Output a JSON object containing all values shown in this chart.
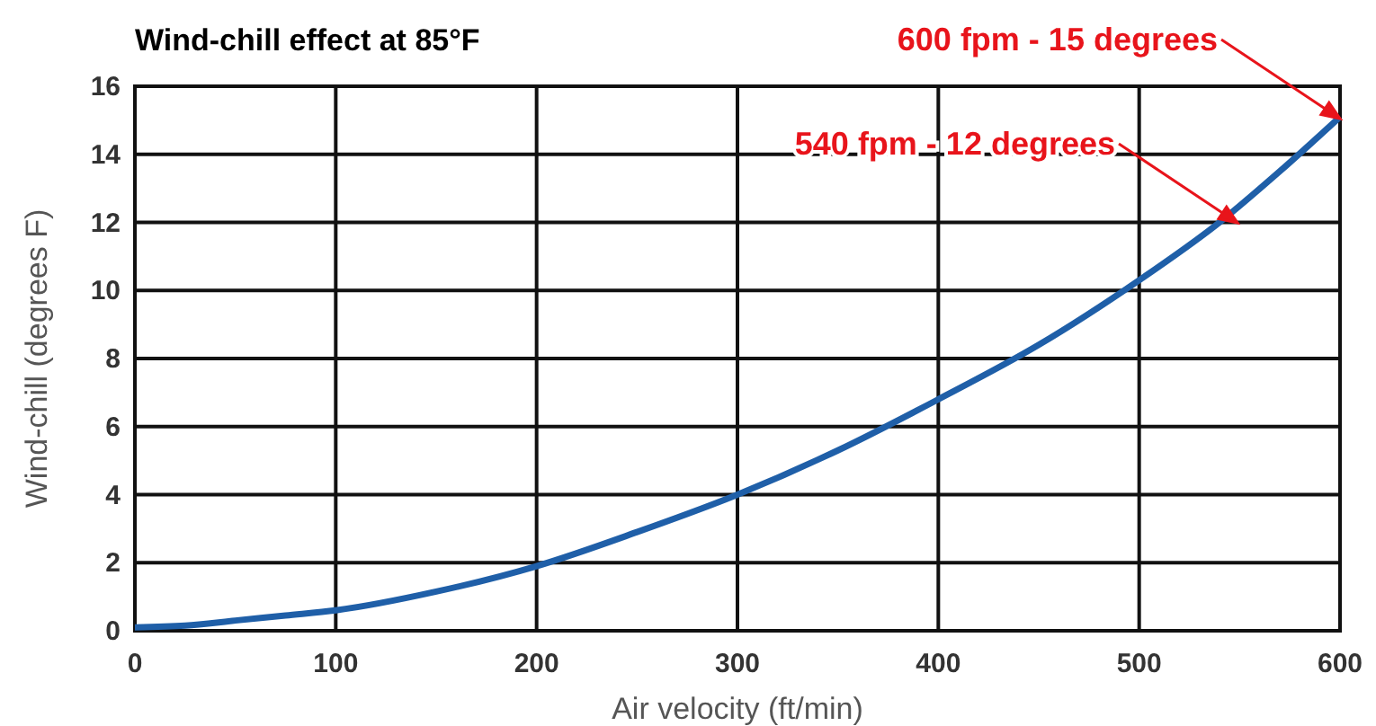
{
  "chart_data": {
    "type": "line",
    "title": "Wind-chill effect at 85°F",
    "xlabel": "Air velocity (ft/min)",
    "ylabel": "Wind-chill (degrees F)",
    "x": [
      0,
      25,
      50,
      75,
      100,
      150,
      200,
      250,
      300,
      350,
      400,
      450,
      500,
      540,
      570,
      600
    ],
    "series": [
      {
        "color": "#1f5fa8",
        "values": [
          0.1,
          0.15,
          0.3,
          0.45,
          0.6,
          1.15,
          1.9,
          2.9,
          4.0,
          5.3,
          6.8,
          8.4,
          10.3,
          12,
          13.5,
          15.1
        ]
      }
    ],
    "xlim": [
      0,
      600
    ],
    "xticks": [
      0,
      100,
      200,
      300,
      400,
      500,
      600
    ],
    "ylim": [
      0,
      16
    ],
    "yticks": [
      0,
      2,
      4,
      6,
      8,
      10,
      12,
      14,
      16
    ],
    "grid": true,
    "marker": "none",
    "line_style": "solid",
    "annotations": [
      "600 fpm - 15 degrees",
      "540 fpm - 12 degrees"
    ]
  }
}
